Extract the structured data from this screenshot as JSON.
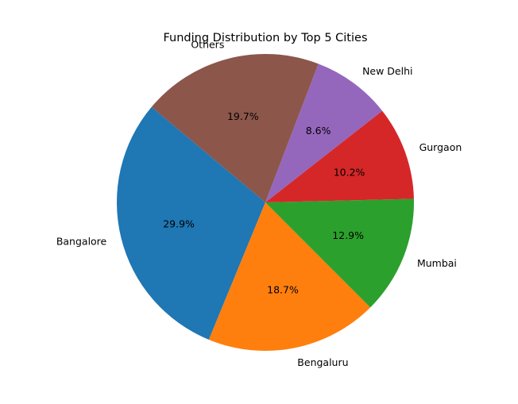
{
  "chart_data": {
    "type": "pie",
    "title": "Funding Distribution by Top 5 Cities",
    "slices": [
      {
        "label": "Bangalore",
        "percent": 29.9,
        "percent_label": "29.9%",
        "color": "#1f77b4"
      },
      {
        "label": "Bengaluru",
        "percent": 18.7,
        "percent_label": "18.7%",
        "color": "#ff7f0e"
      },
      {
        "label": "Mumbai",
        "percent": 12.9,
        "percent_label": "12.9%",
        "color": "#2ca02c"
      },
      {
        "label": "Gurgaon",
        "percent": 10.2,
        "percent_label": "10.2%",
        "color": "#d62728"
      },
      {
        "label": "New Delhi",
        "percent": 8.6,
        "percent_label": "8.6%",
        "color": "#9467bd"
      },
      {
        "label": "Others",
        "percent": 19.7,
        "percent_label": "19.7%",
        "color": "#8c564b"
      }
    ],
    "start_angle_deg": 140,
    "legend": "none"
  }
}
